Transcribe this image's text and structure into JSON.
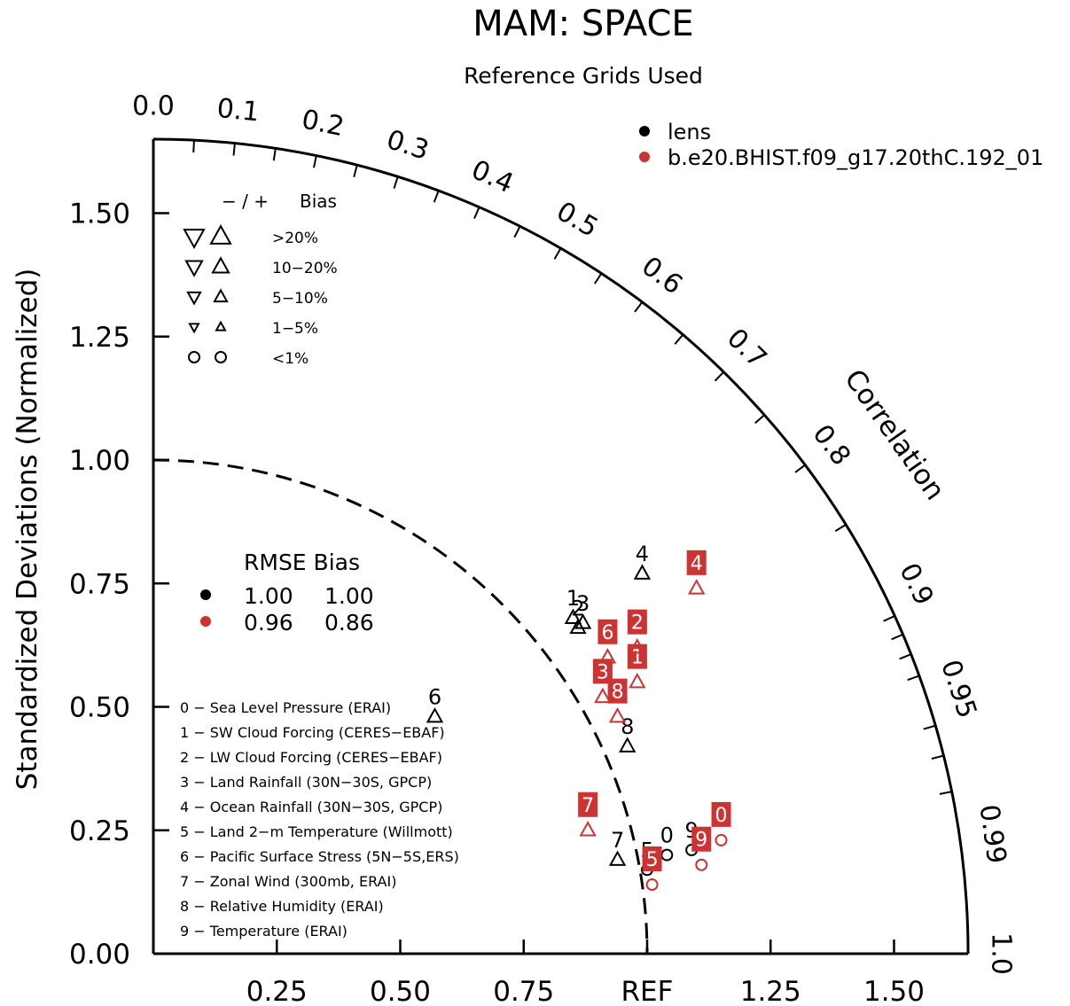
{
  "chart_data": {
    "type": "scatter",
    "subtype": "taylor-diagram",
    "title": "MAM: SPACE",
    "subtitle": "Reference Grids Used",
    "ylabel": "Standardized Deviations (Normalized)",
    "xlabel": "",
    "arc_label": "Correlation",
    "std_ticks": [
      "0.00",
      "0.25",
      "0.50",
      "0.75",
      "1.00",
      "1.25",
      "1.50"
    ],
    "x_tick_labels": [
      "0.25",
      "0.50",
      "0.75",
      "REF",
      "1.25",
      "1.50"
    ],
    "correlation_ticks": [
      "0.0",
      "0.1",
      "0.2",
      "0.3",
      "0.4",
      "0.5",
      "0.6",
      "0.7",
      "0.8",
      "0.9",
      "0.95",
      "0.99",
      "1.0"
    ],
    "std_max": 1.65,
    "series": [
      {
        "name": "lens",
        "color": "#000000",
        "rmse": "1.00",
        "bias": "1.00",
        "points": [
          {
            "label": "0",
            "x": 1.04,
            "y": 0.2,
            "marker": "circle"
          },
          {
            "label": "1",
            "x": 0.85,
            "y": 0.68,
            "marker": "triangle-up"
          },
          {
            "label": "2",
            "x": 0.86,
            "y": 0.66,
            "marker": "triangle-up"
          },
          {
            "label": "3",
            "x": 0.87,
            "y": 0.67,
            "marker": "triangle-up"
          },
          {
            "label": "4",
            "x": 0.99,
            "y": 0.77,
            "marker": "triangle-up"
          },
          {
            "label": "5",
            "x": 1.0,
            "y": 0.17,
            "marker": "circle"
          },
          {
            "label": "6",
            "x": 0.57,
            "y": 0.48,
            "marker": "triangle-up"
          },
          {
            "label": "7",
            "x": 0.94,
            "y": 0.19,
            "marker": "triangle-up"
          },
          {
            "label": "8",
            "x": 0.96,
            "y": 0.42,
            "marker": "triangle-up"
          },
          {
            "label": "9",
            "x": 1.09,
            "y": 0.21,
            "marker": "circle"
          }
        ]
      },
      {
        "name": "b.e20.BHIST.f09_g17.20thC.192_01",
        "color": "#cc3333",
        "rmse": "0.96",
        "bias": "0.86",
        "points": [
          {
            "label": "0",
            "x": 1.15,
            "y": 0.23,
            "marker": "circle"
          },
          {
            "label": "1",
            "x": 0.98,
            "y": 0.55,
            "marker": "triangle-up"
          },
          {
            "label": "2",
            "x": 0.98,
            "y": 0.62,
            "marker": "triangle-up"
          },
          {
            "label": "3",
            "x": 0.91,
            "y": 0.52,
            "marker": "triangle-up"
          },
          {
            "label": "4",
            "x": 1.1,
            "y": 0.74,
            "marker": "triangle-up"
          },
          {
            "label": "5",
            "x": 1.01,
            "y": 0.14,
            "marker": "circle"
          },
          {
            "label": "6",
            "x": 0.92,
            "y": 0.6,
            "marker": "triangle-up"
          },
          {
            "label": "7",
            "x": 0.88,
            "y": 0.25,
            "marker": "triangle-up"
          },
          {
            "label": "8",
            "x": 0.94,
            "y": 0.48,
            "marker": "triangle-up"
          },
          {
            "label": "9",
            "x": 1.11,
            "y": 0.18,
            "marker": "circle"
          }
        ]
      }
    ],
    "legend": {
      "series_placement": "top-right",
      "bias_header": "−  /  +",
      "bias_title": "Bias",
      "bias_rows": [
        {
          "range": ">20%",
          "size": 1.0
        },
        {
          "range": "10−20%",
          "size": 0.82
        },
        {
          "range": "5−10%",
          "size": 0.64
        },
        {
          "range": "1−5%",
          "size": 0.45
        },
        {
          "range": "<1%",
          "size": 0,
          "marker": "circle"
        }
      ],
      "rmse_header": "RMSE Bias"
    },
    "variables": [
      "0 − Sea Level Pressure (ERAI)",
      "1 − SW Cloud Forcing (CERES−EBAF)",
      "2 − LW Cloud Forcing (CERES−EBAF)",
      "3 − Land Rainfall (30N−30S, GPCP)",
      "4 − Ocean Rainfall (30N−30S, GPCP)",
      "5 − Land 2−m Temperature (Willmott)",
      "6 − Pacific Surface Stress (5N−5S,ERS)",
      "7 − Zonal Wind (300mb, ERAI)",
      "8 − Relative Humidity (ERAI)",
      "9 − Temperature (ERAI)"
    ],
    "grid": false
  }
}
